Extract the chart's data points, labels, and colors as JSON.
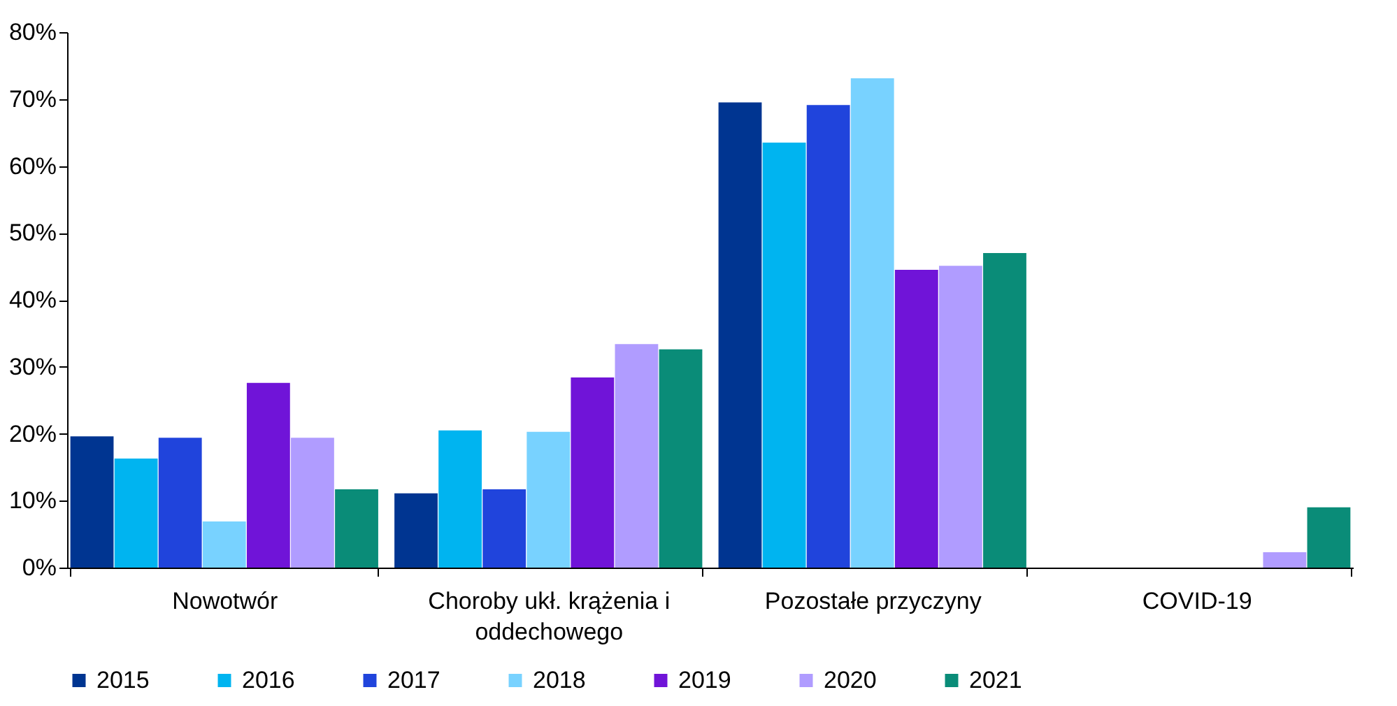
{
  "chart_data": {
    "type": "bar",
    "categories": [
      "Nowotwór",
      "Choroby ukł. krążenia i oddechowego",
      "Pozostałe przyczyny",
      "COVID-19"
    ],
    "series": [
      {
        "name": "2015",
        "color": "#003591",
        "values": [
          19.6,
          11.1,
          69.5,
          null
        ]
      },
      {
        "name": "2016",
        "color": "#00b4f0",
        "values": [
          16.3,
          20.5,
          63.5,
          null
        ]
      },
      {
        "name": "2017",
        "color": "#2044dc",
        "values": [
          19.4,
          11.7,
          69.1,
          null
        ]
      },
      {
        "name": "2018",
        "color": "#78d2ff",
        "values": [
          6.9,
          20.3,
          73.1,
          null
        ]
      },
      {
        "name": "2019",
        "color": "#7014d8",
        "values": [
          27.6,
          28.4,
          44.5,
          null
        ]
      },
      {
        "name": "2020",
        "color": "#b09cff",
        "values": [
          19.4,
          33.4,
          45.1,
          2.3
        ]
      },
      {
        "name": "2021",
        "color": "#0a8c78",
        "values": [
          11.7,
          32.6,
          47.0,
          9.0
        ]
      }
    ],
    "ylim": [
      0,
      80
    ],
    "yticks": [
      {
        "value": 0,
        "label": "0%"
      },
      {
        "value": 10,
        "label": "10%"
      },
      {
        "value": 20,
        "label": "20%"
      },
      {
        "value": 30,
        "label": "30%"
      },
      {
        "value": 40,
        "label": "40%"
      },
      {
        "value": 50,
        "label": "50%"
      },
      {
        "value": 60,
        "label": "60%"
      },
      {
        "value": 70,
        "label": "70%"
      },
      {
        "value": 80,
        "label": "80%"
      }
    ],
    "grid": false,
    "legend": "bottom"
  }
}
